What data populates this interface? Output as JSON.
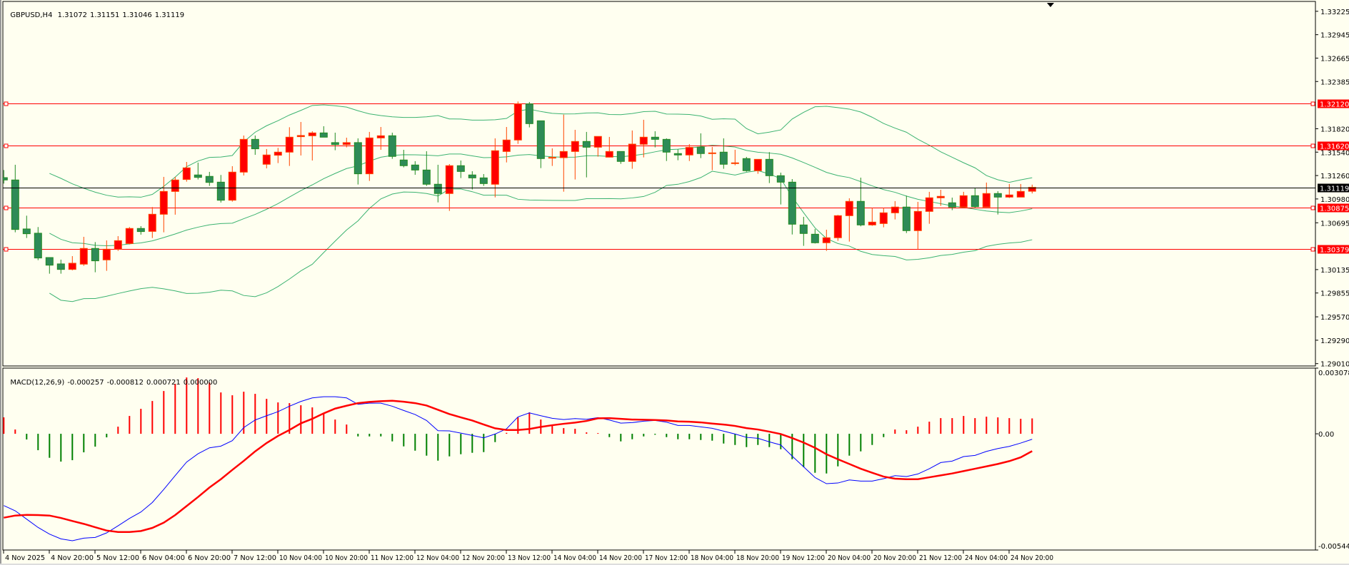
{
  "header": {
    "symbol": "GBPUSD,H4",
    "open": "1.31072",
    "high": "1.31151",
    "low": "1.31046",
    "close": "1.31119"
  },
  "macd_header": {
    "name": "MACD(12,26,9)",
    "v1": "-0.000257",
    "v2": "-0.000812",
    "v3": "0.000721",
    "v4": "0.000000"
  },
  "colors": {
    "background": "#fffff0",
    "bull_body": "#ff0000",
    "bull_border": "#ff4500",
    "bear_body": "#2e8b57",
    "bear_border": "#228b22",
    "bands": "#3cb371",
    "level_line": "#ff0000",
    "bid_line": "#000000",
    "macd_line": "#0000ff",
    "signal_line": "#ff0000",
    "hist_pos": "#ff0000",
    "hist_neg": "#008000"
  },
  "chart_data": {
    "type": "candlestick",
    "title": "GBPUSD,H4",
    "price_range": [
      1.28982,
      1.33343
    ],
    "price_axis_labels": [
      "1.33225",
      "1.32945",
      "1.32665",
      "1.32385",
      "1.31820",
      "1.31540",
      "1.31260",
      "1.30980",
      "1.30695",
      "1.30135",
      "1.29855",
      "1.29570",
      "1.29290",
      "1.29010"
    ],
    "levels": [
      {
        "price": 1.3212,
        "label": "1.32120"
      },
      {
        "price": 1.3162,
        "label": "1.31620"
      },
      {
        "price": 1.30875,
        "label": "1.30875"
      },
      {
        "price": 1.30379,
        "label": "1.30379"
      }
    ],
    "bid": {
      "price": 1.31119,
      "label": "1.31119"
    },
    "time_labels": [
      "4 Nov 2025",
      "4 Nov 20:00",
      "5 Nov 12:00",
      "6 Nov 04:00",
      "6 Nov 20:00",
      "7 Nov 12:00",
      "10 Nov 04:00",
      "10 Nov 20:00",
      "11 Nov 12:00",
      "12 Nov 04:00",
      "12 Nov 20:00",
      "13 Nov 12:00",
      "14 Nov 04:00",
      "14 Nov 20:00",
      "17 Nov 12:00",
      "18 Nov 04:00",
      "18 Nov 20:00",
      "19 Nov 12:00",
      "20 Nov 04:00",
      "20 Nov 20:00",
      "21 Nov 12:00",
      "24 Nov 04:00",
      "24 Nov 20:00"
    ],
    "time_label_every_n_bars": 4,
    "bollinger": {
      "period": 20,
      "deviation": 2
    },
    "candles_ohlc": [
      [
        1.31235,
        1.31326,
        1.31164,
        1.31207
      ],
      [
        1.31207,
        1.31389,
        1.30581,
        1.30615
      ],
      [
        1.30621,
        1.3078,
        1.30513,
        1.30564
      ],
      [
        1.3057,
        1.30644,
        1.30248,
        1.30274
      ],
      [
        1.30279,
        1.30279,
        1.30086,
        1.30188
      ],
      [
        1.30203,
        1.30254,
        1.30086,
        1.30137
      ],
      [
        1.30137,
        1.30296,
        1.30126,
        1.30211
      ],
      [
        1.302,
        1.30527,
        1.3018,
        1.30388
      ],
      [
        1.30388,
        1.30464,
        1.30103,
        1.3024
      ],
      [
        1.30251,
        1.30484,
        1.3012,
        1.30379
      ],
      [
        1.30379,
        1.30535,
        1.30359,
        1.30481
      ],
      [
        1.30447,
        1.30644,
        1.30436,
        1.30627
      ],
      [
        1.30627,
        1.30655,
        1.30553,
        1.3059
      ],
      [
        1.30592,
        1.30883,
        1.30513,
        1.30797
      ],
      [
        1.30797,
        1.31244,
        1.30581,
        1.3107
      ],
      [
        1.3107,
        1.31244,
        1.30792,
        1.31207
      ],
      [
        1.31213,
        1.31423,
        1.31187,
        1.31352
      ],
      [
        1.31267,
        1.31415,
        1.31213,
        1.31238
      ],
      [
        1.3125,
        1.31304,
        1.31136,
        1.31178
      ],
      [
        1.31181,
        1.31267,
        1.30937,
        1.30965
      ],
      [
        1.30965,
        1.31372,
        1.30948,
        1.31301
      ],
      [
        1.31301,
        1.31739,
        1.31261,
        1.31693
      ],
      [
        1.31693,
        1.31739,
        1.31508,
        1.3158
      ],
      [
        1.31395,
        1.31577,
        1.31346,
        1.31506
      ],
      [
        1.31503,
        1.31591,
        1.31409,
        1.3154
      ],
      [
        1.3154,
        1.31838,
        1.31375,
        1.31719
      ],
      [
        1.31725,
        1.31901,
        1.315,
        1.31739
      ],
      [
        1.31736,
        1.3179,
        1.3144,
        1.3177
      ],
      [
        1.3177,
        1.3185,
        1.31719,
        1.31719
      ],
      [
        1.31654,
        1.31773,
        1.31563,
        1.31631
      ],
      [
        1.31631,
        1.31713,
        1.31597,
        1.31654
      ],
      [
        1.31654,
        1.31705,
        1.31153,
        1.31281
      ],
      [
        1.31281,
        1.31782,
        1.31196,
        1.3171
      ],
      [
        1.3171,
        1.31841,
        1.31568,
        1.31736
      ],
      [
        1.31736,
        1.31773,
        1.3146,
        1.31489
      ],
      [
        1.31446,
        1.31568,
        1.31358,
        1.31378
      ],
      [
        1.31386,
        1.31432,
        1.31269,
        1.31326
      ],
      [
        1.31326,
        1.31551,
        1.31136,
        1.31156
      ],
      [
        1.31156,
        1.31389,
        1.30939,
        1.31045
      ],
      [
        1.31045,
        1.31397,
        1.30837,
        1.31378
      ],
      [
        1.31378,
        1.3144,
        1.3123,
        1.31309
      ],
      [
        1.31267,
        1.31312,
        1.31093,
        1.31232
      ],
      [
        1.31232,
        1.31278,
        1.31136,
        1.31164
      ],
      [
        1.31156,
        1.31705,
        1.30999,
        1.31557
      ],
      [
        1.31548,
        1.31841,
        1.31417,
        1.31685
      ],
      [
        1.31685,
        1.32146,
        1.31639,
        1.32117
      ],
      [
        1.32117,
        1.3214,
        1.31836,
        1.31881
      ],
      [
        1.31915,
        1.31915,
        1.31349,
        1.31463
      ],
      [
        1.31471,
        1.31585,
        1.31375,
        1.31477
      ],
      [
        1.31474,
        1.31989,
        1.31067,
        1.31548
      ],
      [
        1.31548,
        1.31807,
        1.31213,
        1.31668
      ],
      [
        1.31668,
        1.31782,
        1.31238,
        1.31599
      ],
      [
        1.31599,
        1.31728,
        1.31486,
        1.31728
      ],
      [
        1.3148,
        1.31722,
        1.31477,
        1.31548
      ],
      [
        1.31548,
        1.31548,
        1.314,
        1.31429
      ],
      [
        1.31429,
        1.31799,
        1.31341,
        1.31636
      ],
      [
        1.31634,
        1.31927,
        1.31477,
        1.31719
      ],
      [
        1.31719,
        1.3179,
        1.31597,
        1.31693
      ],
      [
        1.31693,
        1.31705,
        1.31434,
        1.3154
      ],
      [
        1.31523,
        1.31574,
        1.31443,
        1.31506
      ],
      [
        1.31506,
        1.31636,
        1.31434,
        1.31597
      ],
      [
        1.31599,
        1.31765,
        1.31469,
        1.31523
      ],
      [
        1.31523,
        1.31602,
        1.31324,
        1.31531
      ],
      [
        1.3154,
        1.31705,
        1.31341,
        1.31395
      ],
      [
        1.31403,
        1.31568,
        1.31383,
        1.31412
      ],
      [
        1.31463,
        1.31483,
        1.31306,
        1.31318
      ],
      [
        1.31318,
        1.31454,
        1.31281,
        1.31454
      ],
      [
        1.31454,
        1.3154,
        1.3117,
        1.31258
      ],
      [
        1.31258,
        1.31295,
        1.30914,
        1.31181
      ],
      [
        1.31181,
        1.31218,
        1.30555,
        1.30678
      ],
      [
        1.30669,
        1.30766,
        1.30419,
        1.30567
      ],
      [
        1.30558,
        1.30621,
        1.30447,
        1.30456
      ],
      [
        1.30456,
        1.30612,
        1.30359,
        1.30516
      ],
      [
        1.30516,
        1.30789,
        1.30479,
        1.3078
      ],
      [
        1.3078,
        1.30988,
        1.3047,
        1.30951
      ],
      [
        1.30951,
        1.31235,
        1.30652,
        1.30669
      ],
      [
        1.30669,
        1.30874,
        1.30658,
        1.30703
      ],
      [
        1.30686,
        1.30874,
        1.30641,
        1.30814
      ],
      [
        1.30814,
        1.30954,
        1.30735,
        1.30883
      ],
      [
        1.30883,
        1.31019,
        1.30572,
        1.30601
      ],
      [
        1.30601,
        1.30945,
        1.30379,
        1.30831
      ],
      [
        1.30831,
        1.31065,
        1.30683,
        1.30994
      ],
      [
        1.30994,
        1.3109,
        1.30897,
        1.31011
      ],
      [
        1.30934,
        1.30996,
        1.30846,
        1.30883
      ],
      [
        1.30883,
        1.31065,
        1.30883,
        1.31019
      ],
      [
        1.31019,
        1.31113,
        1.30874,
        1.30888
      ],
      [
        1.30883,
        1.31176,
        1.30883,
        1.31045
      ],
      [
        1.31045,
        1.31073,
        1.30794,
        1.31002
      ],
      [
        1.31002,
        1.31159,
        1.30991,
        1.31028
      ],
      [
        1.31002,
        1.31159,
        1.31002,
        1.3107
      ],
      [
        1.31072,
        1.31151,
        1.31046,
        1.31119
      ]
    ],
    "macd": {
      "range": [
        -0.005447,
        0.003078
      ],
      "axis_labels": {
        "top": "0.003078",
        "zero": "0.00",
        "bottom": "-0.005447"
      },
      "histogram": [
        0.000769,
        0.000201,
        -0.000267,
        -0.000769,
        -0.001125,
        -0.001303,
        -0.001237,
        -0.000869,
        -0.000602,
        -0.000167,
        0.000334,
        0.000836,
        0.00117,
        0.001537,
        0.002005,
        0.002339,
        0.00264,
        0.002607,
        0.002406,
        0.001938,
        0.001805,
        0.001972,
        0.001872,
        0.001638,
        0.00147,
        0.001437,
        0.001337,
        0.001237,
        0.000969,
        0.000668,
        0.000434,
        -0.000123,
        -0.000123,
        -0.000123,
        -0.000356,
        -0.00059,
        -0.000791,
        -0.001025,
        -0.001259,
        -0.001058,
        -0.000958,
        -0.000891,
        -0.000858,
        -0.00039,
        4.5e-05,
        0.000769,
        0.001003,
        0.000668,
        0.000401,
        0.000267,
        0.000234,
        6.7e-05,
        3.3e-05,
        -0.000156,
        -0.000356,
        -0.000256,
        -0.000123,
        -4.5e-05,
        -0.000156,
        -0.000256,
        -0.000256,
        -0.00029,
        -0.000323,
        -0.000457,
        -0.000524,
        -0.000624,
        -0.000524,
        -0.000624,
        -0.000724,
        -0.001192,
        -0.00156,
        -0.001827,
        -0.00186,
        -0.001526,
        -0.001025,
        -0.000824,
        -0.000524,
        -0.000156,
        0.000201,
        0.000167,
        0.000334,
        0.000568,
        0.000735,
        0.000735,
        0.000836,
        0.000735,
        0.000802,
        0.000769,
        0.000735,
        0.000702,
        0.000721
      ],
      "main": [
        -0.003364,
        -0.003609,
        -0.003999,
        -0.004389,
        -0.004701,
        -0.004924,
        -0.005013,
        -0.00489,
        -0.004857,
        -0.004645,
        -0.004311,
        -0.003966,
        -0.003665,
        -0.003219,
        -0.002607,
        -0.001961,
        -0.001326,
        -0.000936,
        -0.000657,
        -0.000579,
        -0.000323,
        0.00029,
        0.000646,
        0.000847,
        0.001036,
        0.001292,
        0.001515,
        0.001682,
        0.001738,
        0.001738,
        0.001682,
        0.001381,
        0.001437,
        0.001437,
        0.001292,
        0.001092,
        0.000902,
        0.000624,
        0.000145,
        0.000134,
        3.3e-05,
        -7.8e-05,
        -0.000189,
        -1.1e-05,
        0.000234,
        0.000791,
        0.00098,
        0.000847,
        0.000724,
        0.000668,
        0.000713,
        0.00068,
        0.000758,
        0.000646,
        0.000501,
        0.000524,
        0.00059,
        0.000624,
        0.000546,
        0.00039,
        0.00039,
        0.000323,
        0.000256,
        0.000123,
        -1.1e-05,
        -0.000167,
        -0.000212,
        -0.000379,
        -0.000524,
        -0.001047,
        -0.001548,
        -0.00205,
        -0.002339,
        -0.002306,
        -0.002161,
        -0.002217,
        -0.002217,
        -0.002105,
        -0.001961,
        -0.002005,
        -0.001883,
        -0.001638,
        -0.001348,
        -0.001281,
        -0.001069,
        -0.001014,
        -0.000824,
        -0.000691,
        -0.00059,
        -0.000434,
        -0.000257
      ],
      "signal": [
        -0.003932,
        -0.003832,
        -0.003799,
        -0.00381,
        -0.003832,
        -0.003944,
        -0.004088,
        -0.004222,
        -0.004378,
        -0.004534,
        -0.004601,
        -0.004601,
        -0.004556,
        -0.004411,
        -0.004166,
        -0.00381,
        -0.003387,
        -0.002963,
        -0.002518,
        -0.002128,
        -0.001693,
        -0.00127,
        -0.000824,
        -0.000434,
        -0.0001,
        0.000178,
        0.00049,
        0.000702,
        0.000958,
        0.001181,
        0.001315,
        0.001437,
        0.001493,
        0.001526,
        0.001548,
        0.001504,
        0.001437,
        0.001326,
        0.001125,
        0.000925,
        0.000769,
        0.000624,
        0.000434,
        0.000256,
        0.000178,
        0.000178,
        0.000223,
        0.000323,
        0.000401,
        0.000468,
        0.000524,
        0.000602,
        0.000724,
        0.000735,
        0.000702,
        0.000668,
        0.000657,
        0.000646,
        0.000624,
        0.000579,
        0.000568,
        0.000535,
        0.000479,
        0.000434,
        0.000368,
        0.000267,
        0.000201,
        0.0001,
        -1.1e-05,
        -0.000201,
        -0.000412,
        -0.000657,
        -0.000958,
        -0.001192,
        -0.001415,
        -0.001638,
        -0.001827,
        -0.002005,
        -0.002105,
        -0.002128,
        -0.002128,
        -0.002039,
        -0.00195,
        -0.00186,
        -0.001749,
        -0.001638,
        -0.001526,
        -0.001415,
        -0.001281,
        -0.001103,
        -0.000812
      ]
    }
  }
}
